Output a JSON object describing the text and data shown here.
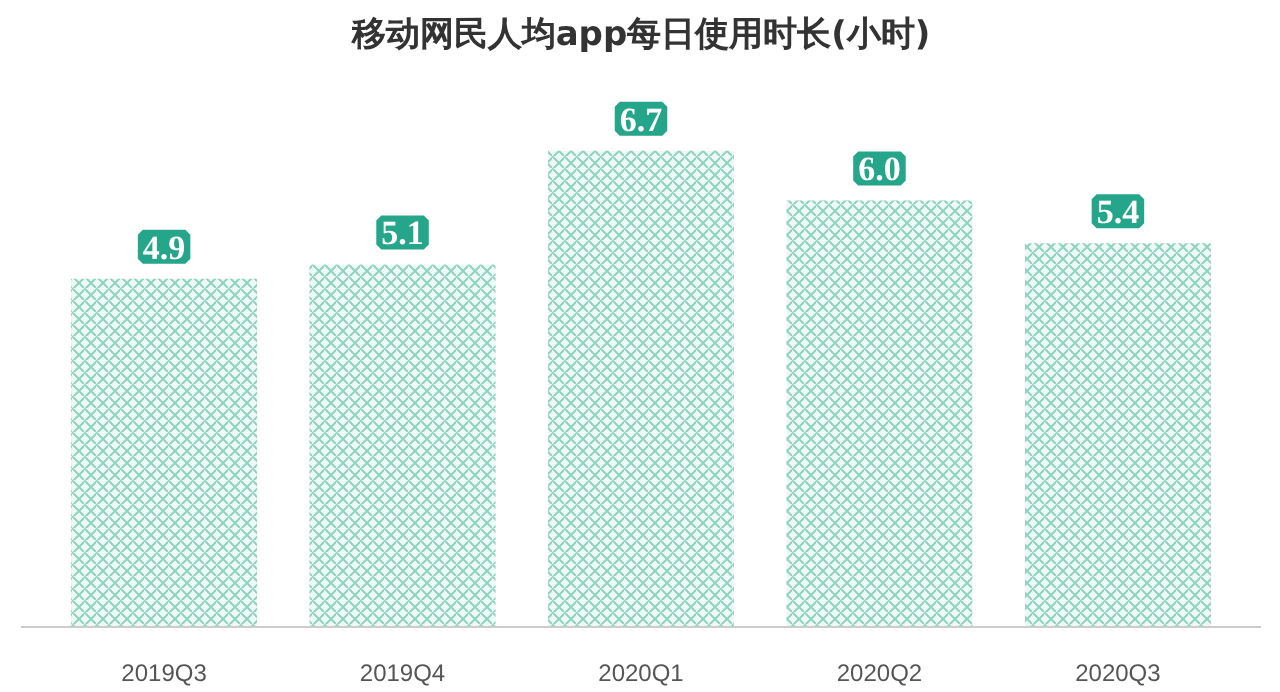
{
  "chart_data": {
    "type": "bar",
    "title": "移动网民人均app每日使用时长(小时)",
    "categories": [
      "2019Q3",
      "2019Q4",
      "2020Q1",
      "2020Q2",
      "2020Q3"
    ],
    "values": [
      4.9,
      5.1,
      6.7,
      6.0,
      5.4
    ],
    "value_labels": [
      "4.9",
      "5.1",
      "6.7",
      "6.0",
      "5.4"
    ],
    "color": "#8fd3c0",
    "grid": false
  }
}
